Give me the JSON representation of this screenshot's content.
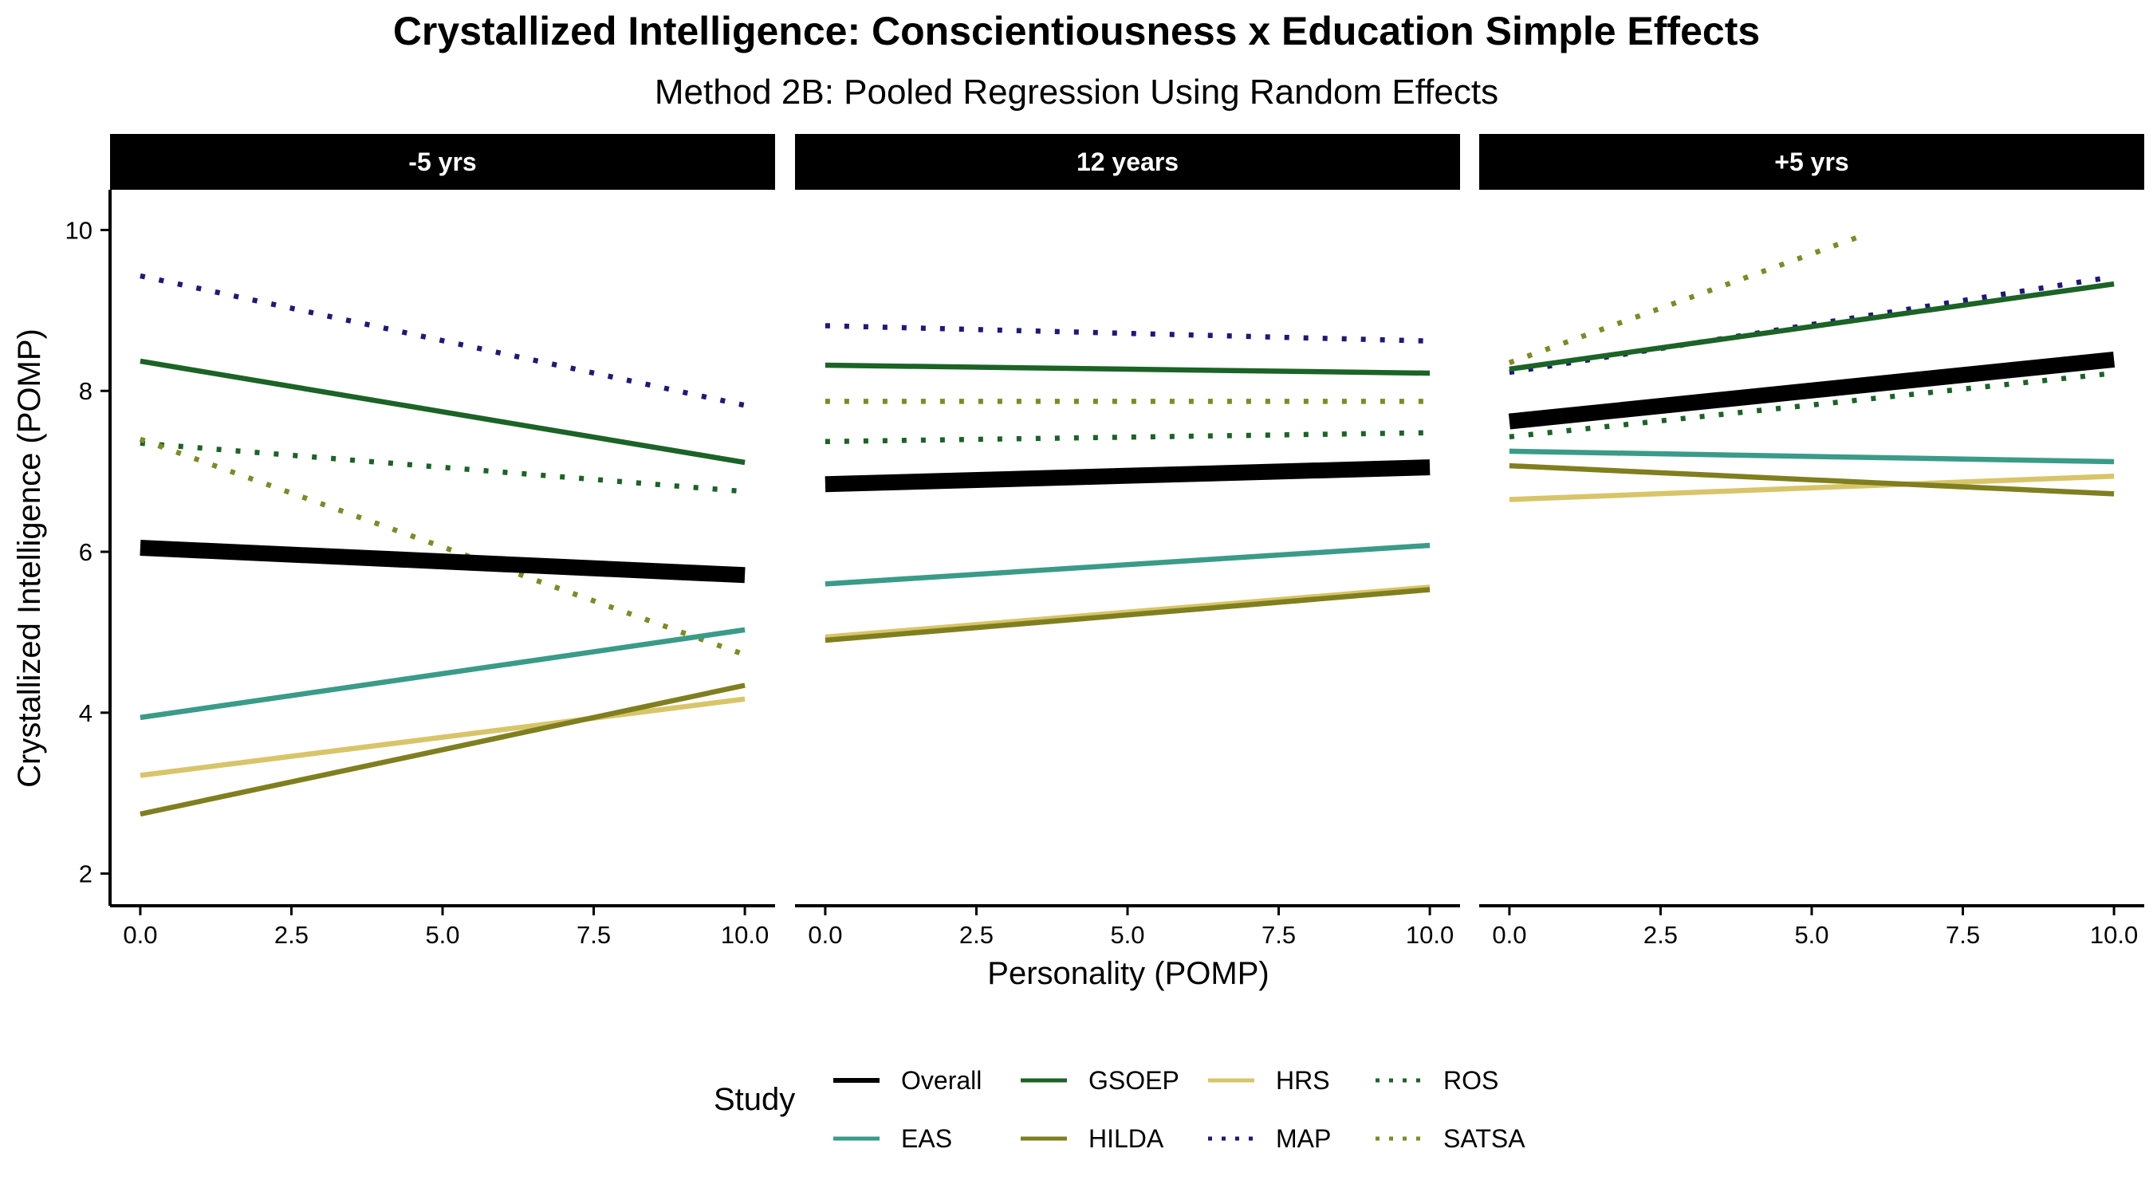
{
  "chart_data": {
    "type": "line",
    "title": "Crystallized Intelligence: Conscientiousness x Education Simple Effects",
    "subtitle": "Method 2B: Pooled Regression Using Random Effects",
    "xlabel": "Personality (POMP)",
    "ylabel": "Crystallized Intelligence (POMP)",
    "xlim": [
      -0.5,
      10.5
    ],
    "ylim": [
      1.6,
      10.5
    ],
    "x_ticks": [
      0,
      2.5,
      5,
      7.5,
      10
    ],
    "x_tick_labels": [
      "0.0",
      "2.5",
      "5.0",
      "7.5",
      "10.0"
    ],
    "y_ticks": [
      2,
      4,
      6,
      8,
      10
    ],
    "y_tick_labels": [
      "2",
      "4",
      "6",
      "8",
      "10"
    ],
    "grid": false,
    "legend": {
      "title": "Study",
      "position": "bottom",
      "columns": [
        [
          "Overall",
          "EAS"
        ],
        [
          "GSOEP",
          "HILDA"
        ],
        [
          "HRS",
          "MAP"
        ],
        [
          "ROS",
          "SATSA"
        ]
      ]
    },
    "styles": {
      "Overall": {
        "color": "#000000",
        "dash": "solid",
        "width": "thick"
      },
      "EAS": {
        "color": "#3a9b88",
        "dash": "solid",
        "width": "normal"
      },
      "GSOEP": {
        "color": "#1b6326",
        "dash": "solid",
        "width": "normal"
      },
      "HILDA": {
        "color": "#7f7f1f",
        "dash": "solid",
        "width": "normal"
      },
      "HRS": {
        "color": "#d8c56a",
        "dash": "solid",
        "width": "normal"
      },
      "MAP": {
        "color": "#1c1a78",
        "dash": "dotted",
        "width": "normal"
      },
      "ROS": {
        "color": "#1b6326",
        "dash": "dotted",
        "width": "normal"
      },
      "SATSA": {
        "color": "#7f8a24",
        "dash": "dotted",
        "width": "normal"
      }
    },
    "panels": [
      {
        "label": "-5 yrs",
        "series": [
          {
            "name": "ROS",
            "x": [
              0,
              10
            ],
            "y": [
              7.35,
              6.75
            ]
          },
          {
            "name": "SATSA",
            "x": [
              0,
              10
            ],
            "y": [
              7.4,
              4.72
            ]
          },
          {
            "name": "MAP",
            "x": [
              0,
              10
            ],
            "y": [
              9.43,
              7.82
            ]
          },
          {
            "name": "GSOEP",
            "x": [
              0,
              10
            ],
            "y": [
              8.37,
              7.11
            ]
          },
          {
            "name": "EAS",
            "x": [
              0,
              10
            ],
            "y": [
              3.94,
              5.03
            ]
          },
          {
            "name": "HRS",
            "x": [
              0,
              10
            ],
            "y": [
              3.22,
              4.17
            ]
          },
          {
            "name": "HILDA",
            "x": [
              0,
              10
            ],
            "y": [
              2.74,
              4.34
            ]
          },
          {
            "name": "Overall",
            "x": [
              0,
              10
            ],
            "y": [
              6.05,
              5.71
            ]
          }
        ]
      },
      {
        "label": "12 years",
        "series": [
          {
            "name": "ROS",
            "x": [
              0,
              10
            ],
            "y": [
              7.37,
              7.48
            ]
          },
          {
            "name": "SATSA",
            "x": [
              0,
              10
            ],
            "y": [
              7.87,
              7.87
            ]
          },
          {
            "name": "MAP",
            "x": [
              0,
              10
            ],
            "y": [
              8.81,
              8.62
            ]
          },
          {
            "name": "GSOEP",
            "x": [
              0,
              10
            ],
            "y": [
              8.32,
              8.22
            ]
          },
          {
            "name": "EAS",
            "x": [
              0,
              10
            ],
            "y": [
              5.6,
              6.08
            ]
          },
          {
            "name": "HRS",
            "x": [
              0,
              10
            ],
            "y": [
              4.94,
              5.56
            ]
          },
          {
            "name": "HILDA",
            "x": [
              0,
              10
            ],
            "y": [
              4.9,
              5.53
            ]
          },
          {
            "name": "Overall",
            "x": [
              0,
              10
            ],
            "y": [
              6.84,
              7.05
            ]
          }
        ]
      },
      {
        "label": "+5 yrs",
        "series": [
          {
            "name": "ROS",
            "x": [
              0,
              10
            ],
            "y": [
              7.43,
              8.22
            ]
          },
          {
            "name": "SATSA",
            "x": [
              0,
              5.8
            ],
            "y": [
              8.35,
              9.92
            ]
          },
          {
            "name": "MAP",
            "x": [
              0,
              10
            ],
            "y": [
              8.23,
              9.42
            ]
          },
          {
            "name": "GSOEP",
            "x": [
              0,
              10
            ],
            "y": [
              8.27,
              9.33
            ]
          },
          {
            "name": "EAS",
            "x": [
              0,
              10
            ],
            "y": [
              7.25,
              7.12
            ]
          },
          {
            "name": "HRS",
            "x": [
              0,
              10
            ],
            "y": [
              6.65,
              6.94
            ]
          },
          {
            "name": "HILDA",
            "x": [
              0,
              10
            ],
            "y": [
              7.07,
              6.72
            ]
          },
          {
            "name": "Overall",
            "x": [
              0,
              10
            ],
            "y": [
              7.62,
              8.39
            ]
          }
        ]
      }
    ]
  }
}
